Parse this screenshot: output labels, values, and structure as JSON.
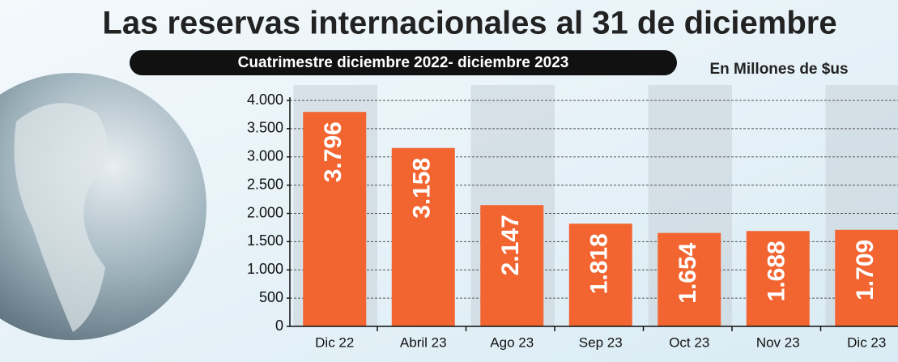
{
  "chart_data": {
    "type": "bar",
    "title": "Las reservas internacionales al 31 de diciembre",
    "subtitle": "Cuatrimestre diciembre 2022- diciembre 2023",
    "unit_label": "En Millones de $us",
    "categories": [
      "Dic 22",
      "Abril 23",
      "Ago 23",
      "Sep 23",
      "Oct 23",
      "Nov 23",
      "Dic 23"
    ],
    "values": [
      3796,
      3158,
      2147,
      1818,
      1654,
      1688,
      1709
    ],
    "value_labels": [
      "3.796",
      "3.158",
      "2.147",
      "1.818",
      "1.654",
      "1.688",
      "1.709"
    ],
    "color": "#f26531",
    "ylim": [
      0,
      4000
    ],
    "yticks": [
      0,
      500,
      {
        "value": 1000,
        "label": "1.000"
      },
      {
        "value": 1500,
        "label": "1.500"
      },
      {
        "value": 2000,
        "label": "2.000"
      },
      {
        "value": 2500,
        "label": "2.500"
      },
      {
        "value": 3000,
        "label": "3.000"
      },
      {
        "value": 3500,
        "label": "3.500"
      },
      {
        "value": 4000,
        "label": "4.000"
      }
    ],
    "grid": true
  }
}
